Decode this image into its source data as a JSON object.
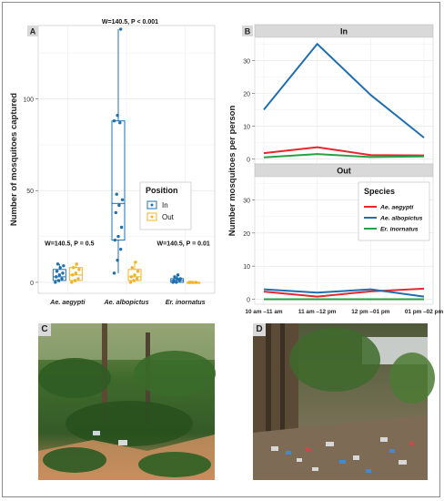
{
  "panel_letters": {
    "a": "A",
    "b": "B",
    "c": "C",
    "d": "D"
  },
  "colors": {
    "in": "#1f6fb0",
    "out": "#f0b323",
    "aegypti": "#e8262c",
    "albopictus": "#1f6fb0",
    "inornatus": "#27a045"
  },
  "chart_data": [
    {
      "type": "box",
      "ylabel": "Number of mosquitoes captured",
      "xlabel": "",
      "categories": [
        "Ae. aegypti",
        "Ae. albopictus",
        "Er. inornatus"
      ],
      "yticks": [
        0,
        50,
        100
      ],
      "ylim": [
        -6,
        140
      ],
      "grid": true,
      "legend": {
        "title": "Position",
        "entries": [
          "In",
          "Out"
        ],
        "placement": "right"
      },
      "annotations": [
        "W=140.5, P = 0.5",
        "W=140.5, P < 0.001",
        "W=140.5, P = 0.01"
      ],
      "series": [
        {
          "name": "In",
          "boxes": [
            {
              "min": 0,
              "q1": 1,
              "median": 3,
              "q3": 7,
              "max": 10,
              "points": [
                0,
                1,
                2,
                3,
                4,
                5,
                6,
                8,
                9,
                10
              ]
            },
            {
              "min": 5,
              "q1": 23,
              "median": 43,
              "q3": 88,
              "max": 138,
              "points": [
                5,
                12,
                18,
                23,
                25,
                30,
                38,
                42,
                45,
                48,
                87,
                88,
                91,
                138
              ]
            },
            {
              "min": 0,
              "q1": 0,
              "median": 1,
              "q3": 2,
              "max": 4,
              "points": [
                0,
                0,
                1,
                1,
                2,
                2,
                3,
                4
              ]
            }
          ]
        },
        {
          "name": "Out",
          "boxes": [
            {
              "min": 0,
              "q1": 1,
              "median": 4,
              "q3": 8,
              "max": 10,
              "points": [
                0,
                1,
                2,
                4,
                5,
                7,
                8,
                10
              ]
            },
            {
              "min": 0,
              "q1": 1,
              "median": 3,
              "q3": 7,
              "max": 11,
              "points": [
                0,
                1,
                2,
                3,
                4,
                6,
                8,
                11
              ]
            },
            {
              "min": 0,
              "q1": 0,
              "median": 0,
              "q3": 0,
              "max": 0,
              "points": [
                0,
                0,
                0,
                0
              ]
            }
          ]
        }
      ]
    },
    {
      "type": "line",
      "ylabel": "Number mosquitoes per person",
      "xlabel": "",
      "categories": [
        "10 am –11 am",
        "11 am –12 pm",
        "12 pm –01 pm",
        "01 pm –02 pm"
      ],
      "yticks": [
        0,
        10,
        20,
        30
      ],
      "ylim": [
        -1.5,
        37
      ],
      "grid": true,
      "legend": {
        "title": "Species",
        "entries": [
          "Ae. aegypti",
          "Ae. albopictus",
          "Er. inornatus"
        ],
        "placement": "bottom facet, right"
      },
      "facets": [
        {
          "label": "In",
          "series": [
            {
              "name": "Ae. aegypti",
              "values": [
                1.8,
                3.6,
                1.2,
                1.1
              ]
            },
            {
              "name": "Ae. albopictus",
              "values": [
                15,
                35,
                19.5,
                6.5
              ]
            },
            {
              "name": "Er. inornatus",
              "values": [
                0.5,
                1.5,
                0.6,
                0.8
              ]
            }
          ]
        },
        {
          "label": "Out",
          "series": [
            {
              "name": "Ae. aegypti",
              "values": [
                2.3,
                0.8,
                2.4,
                3.2
              ]
            },
            {
              "name": "Ae. albopictus",
              "values": [
                3.0,
                2.0,
                3.0,
                0.8
              ]
            },
            {
              "name": "Er. inornatus",
              "values": [
                0,
                0,
                0,
                0
              ]
            }
          ]
        }
      ]
    }
  ]
}
